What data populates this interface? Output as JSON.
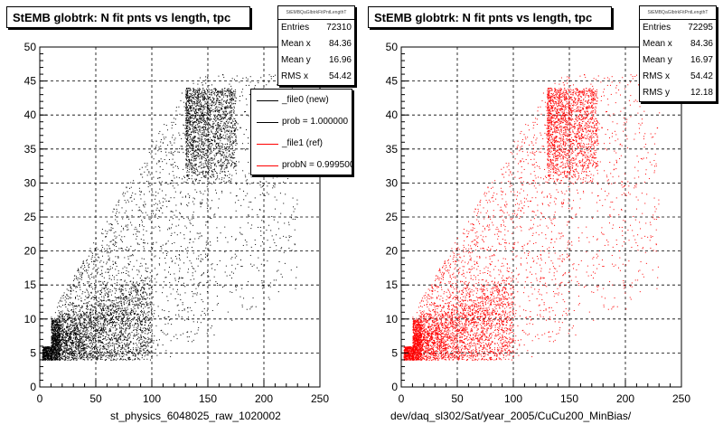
{
  "chart_data": [
    {
      "type": "scatter",
      "title": "StEMB globtrk: N fit pnts vs length, tpc",
      "xlabel": "st_physics_6048025_raw_1020002",
      "ylabel": "",
      "xlim": [
        0,
        250
      ],
      "ylim": [
        0,
        50
      ],
      "x_ticks": [
        "0",
        "50",
        "100",
        "150",
        "200",
        "250"
      ],
      "y_ticks": [
        "0",
        "5",
        "10",
        "15",
        "20",
        "25",
        "30",
        "35",
        "40",
        "45",
        "50"
      ],
      "grid": true,
      "marker_color": "#000000",
      "stats": {
        "name": "StEMBQaGlbtrkFitPntLengthT",
        "rows": [
          {
            "label": "Entries",
            "value": "72310"
          },
          {
            "label": "Mean x",
            "value": "84.36"
          },
          {
            "label": "Mean y",
            "value": "16.96"
          },
          {
            "label": "RMS x",
            "value": "54.42"
          }
        ]
      },
      "legend": {
        "placement": "top-right",
        "entries": [
          {
            "label": "_file0 (new)",
            "color": "#000000"
          },
          {
            "label": "prob = 1.000000",
            "color": "#000000"
          },
          {
            "label": "_file1 (ref)",
            "color": "#ff0000"
          },
          {
            "label": "probN = 0.999500",
            "color": "#ff0000"
          }
        ]
      }
    },
    {
      "type": "scatter",
      "title": "StEMB globtrk: N fit pnts vs length, tpc",
      "xlabel": "dev/daq_sl302/Sat/year_2005/CuCu200_MinBias/",
      "ylabel": "",
      "xlim": [
        0,
        250
      ],
      "ylim": [
        0,
        50
      ],
      "x_ticks": [
        "0",
        "50",
        "100",
        "150",
        "200",
        "250"
      ],
      "y_ticks": [
        "0",
        "5",
        "10",
        "15",
        "20",
        "25",
        "30",
        "35",
        "40",
        "45",
        "50"
      ],
      "grid": true,
      "marker_color": "#ff0000",
      "stats": {
        "name": "StEMBQaGlbtrkFitPntLengthT",
        "rows": [
          {
            "label": "Entries",
            "value": "72295"
          },
          {
            "label": "Mean x",
            "value": "84.36"
          },
          {
            "label": "Mean y",
            "value": "16.97"
          },
          {
            "label": "RMS x",
            "value": "54.42"
          },
          {
            "label": "RMS y",
            "value": "12.18"
          }
        ]
      }
    }
  ]
}
